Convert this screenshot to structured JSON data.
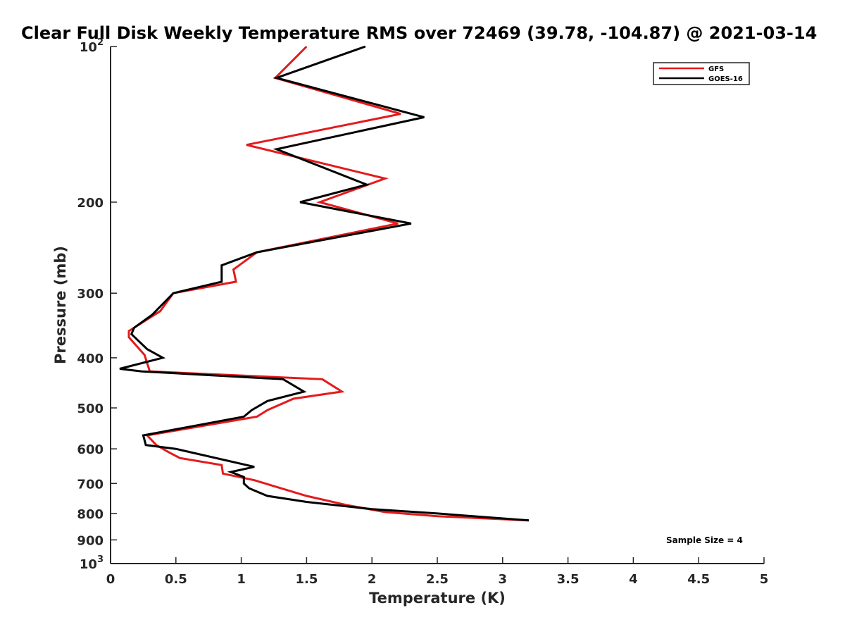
{
  "chart_data": {
    "type": "line",
    "title": "Clear Full Disk Weekly Temperature RMS over 72469 (39.78, -104.87) @ 2021-03-14",
    "xlabel": "Temperature (K)",
    "ylabel": "Pressure (mb)",
    "xlim": [
      0,
      5
    ],
    "ylim": [
      100,
      1000
    ],
    "yscale": "log",
    "y_reversed": true,
    "x_ticks": [
      "0",
      "0.5",
      "1",
      "1.5",
      "2",
      "2.5",
      "3",
      "3.5",
      "4",
      "4.5",
      "5"
    ],
    "y_ticks": [
      {
        "value": 100,
        "base": "10",
        "exp": "2"
      },
      {
        "value": 200,
        "label": "200"
      },
      {
        "value": 300,
        "label": "300"
      },
      {
        "value": 400,
        "label": "400"
      },
      {
        "value": 500,
        "label": "500"
      },
      {
        "value": 600,
        "label": "600"
      },
      {
        "value": 700,
        "label": "700"
      },
      {
        "value": 800,
        "label": "800"
      },
      {
        "value": 900,
        "label": "900"
      },
      {
        "value": 1000,
        "base": "10",
        "exp": "3"
      }
    ],
    "legend_position": "top-right",
    "annotation": "Sample Size = 4",
    "series": [
      {
        "name": "GFS",
        "color": "#e41a1c",
        "points": [
          [
            1.5,
            100
          ],
          [
            1.26,
            115
          ],
          [
            2.22,
            135
          ],
          [
            1.04,
            155
          ],
          [
            2.1,
            180
          ],
          [
            1.6,
            200
          ],
          [
            2.2,
            220
          ],
          [
            1.12,
            250
          ],
          [
            0.94,
            270
          ],
          [
            0.96,
            285
          ],
          [
            0.48,
            300
          ],
          [
            0.38,
            325
          ],
          [
            0.14,
            355
          ],
          [
            0.14,
            365
          ],
          [
            0.26,
            395
          ],
          [
            0.3,
            425
          ],
          [
            1.62,
            440
          ],
          [
            1.77,
            465
          ],
          [
            1.4,
            480
          ],
          [
            1.2,
            505
          ],
          [
            1.12,
            520
          ],
          [
            0.28,
            565
          ],
          [
            0.35,
            590
          ],
          [
            0.45,
            610
          ],
          [
            0.53,
            625
          ],
          [
            0.85,
            645
          ],
          [
            0.86,
            670
          ],
          [
            1.1,
            690
          ],
          [
            1.5,
            740
          ],
          [
            1.8,
            770
          ],
          [
            2.1,
            795
          ],
          [
            2.5,
            810
          ],
          [
            3.2,
            825
          ]
        ]
      },
      {
        "name": "GOES-16",
        "color": "#000000",
        "points": [
          [
            1.95,
            100
          ],
          [
            1.27,
            115
          ],
          [
            2.4,
            137
          ],
          [
            1.27,
            158
          ],
          [
            1.96,
            185
          ],
          [
            1.45,
            200
          ],
          [
            2.3,
            220
          ],
          [
            1.12,
            250
          ],
          [
            0.85,
            265
          ],
          [
            0.85,
            285
          ],
          [
            0.48,
            300
          ],
          [
            0.32,
            330
          ],
          [
            0.18,
            350
          ],
          [
            0.16,
            360
          ],
          [
            0.28,
            385
          ],
          [
            0.4,
            400
          ],
          [
            0.07,
            420
          ],
          [
            0.24,
            425
          ],
          [
            1.32,
            440
          ],
          [
            1.48,
            465
          ],
          [
            1.2,
            485
          ],
          [
            1.08,
            505
          ],
          [
            1.02,
            520
          ],
          [
            0.25,
            565
          ],
          [
            0.27,
            590
          ],
          [
            0.5,
            600
          ],
          [
            1.1,
            650
          ],
          [
            0.92,
            665
          ],
          [
            1.02,
            680
          ],
          [
            1.02,
            700
          ],
          [
            1.06,
            715
          ],
          [
            1.2,
            740
          ],
          [
            1.5,
            760
          ],
          [
            2.0,
            785
          ],
          [
            2.5,
            800
          ],
          [
            3.2,
            825
          ]
        ]
      }
    ]
  }
}
